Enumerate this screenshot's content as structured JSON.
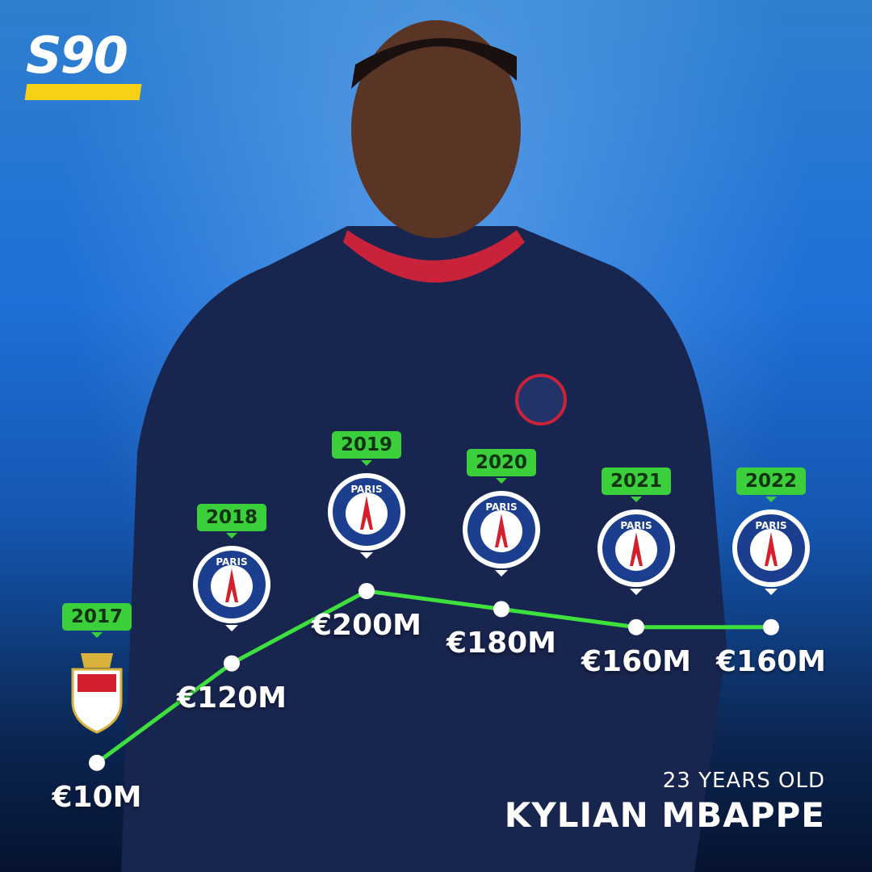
{
  "brand": {
    "logo_text": "S90",
    "accent": "#f6d116"
  },
  "player": {
    "age": "23 YEARS OLD",
    "name": "KYLIAN MBAPPE"
  },
  "colors": {
    "line": "#3ee03e",
    "badge": "#3ccf3c"
  },
  "chart_data": {
    "type": "line",
    "title": "",
    "categories": [
      "2017",
      "2018",
      "2019",
      "2020",
      "2021",
      "2022"
    ],
    "clubs": [
      "AS Monaco",
      "Paris Saint-Germain",
      "Paris Saint-Germain",
      "Paris Saint-Germain",
      "Paris Saint-Germain",
      "Paris Saint-Germain"
    ],
    "values": [
      10,
      120,
      200,
      180,
      160,
      160
    ],
    "labels": [
      "€10M",
      "€120M",
      "€200M",
      "€180M",
      "€160M",
      "€160M"
    ],
    "unit": "€M",
    "grid": false
  }
}
